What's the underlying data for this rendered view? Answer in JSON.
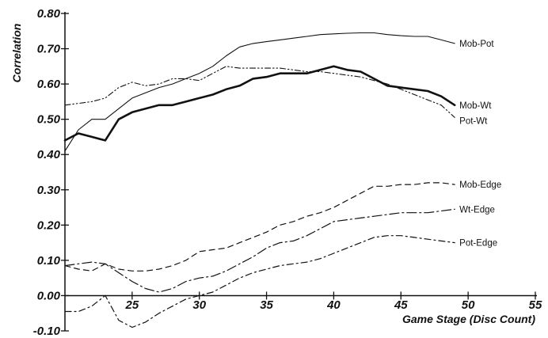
{
  "chart_data": {
    "type": "line",
    "title": "",
    "xlabel": "Game Stage (Disc Count)",
    "ylabel": "Correlation",
    "xlim": [
      20,
      55
    ],
    "ylim": [
      -0.1,
      0.8
    ],
    "xticks": [
      25,
      30,
      35,
      40,
      45,
      50,
      55
    ],
    "yticks": [
      -0.1,
      0.0,
      0.1,
      0.2,
      0.3,
      0.4,
      0.5,
      0.6,
      0.7,
      0.8
    ],
    "xtick_labels": [
      "25",
      "30",
      "35",
      "40",
      "45",
      "50",
      "55"
    ],
    "ytick_labels": [
      "-0.10",
      "0.00",
      "0.10",
      "0.20",
      "0.30",
      "0.40",
      "0.50",
      "0.60",
      "0.70",
      "0.80"
    ],
    "grid": false,
    "legend": "inline labels at right end of each series",
    "series": [
      {
        "name": "Mob-Pot",
        "style": "thin-solid",
        "x": [
          20,
          21,
          22,
          23,
          24,
          25,
          26,
          27,
          28,
          29,
          30,
          31,
          32,
          33,
          34,
          35,
          36,
          37,
          38,
          39,
          40,
          41,
          42,
          43,
          44,
          45,
          46,
          47,
          48,
          49
        ],
        "values": [
          0.41,
          0.47,
          0.5,
          0.5,
          0.53,
          0.56,
          0.575,
          0.59,
          0.6,
          0.615,
          0.63,
          0.65,
          0.68,
          0.705,
          0.715,
          0.72,
          0.725,
          0.73,
          0.735,
          0.74,
          0.742,
          0.744,
          0.745,
          0.745,
          0.74,
          0.737,
          0.735,
          0.735,
          0.725,
          0.715
        ]
      },
      {
        "name": "Mob-Wt",
        "style": "thick-solid",
        "x": [
          20,
          21,
          22,
          23,
          24,
          25,
          26,
          27,
          28,
          29,
          30,
          31,
          32,
          33,
          34,
          35,
          36,
          37,
          38,
          39,
          40,
          41,
          42,
          43,
          44,
          45,
          46,
          47,
          48,
          49
        ],
        "values": [
          0.44,
          0.46,
          0.45,
          0.44,
          0.5,
          0.52,
          0.53,
          0.54,
          0.54,
          0.55,
          0.56,
          0.57,
          0.585,
          0.595,
          0.615,
          0.62,
          0.63,
          0.63,
          0.63,
          0.64,
          0.65,
          0.64,
          0.635,
          0.615,
          0.595,
          0.59,
          0.585,
          0.58,
          0.565,
          0.54
        ]
      },
      {
        "name": "Pot-Wt",
        "style": "dash-dot-dot",
        "x": [
          20,
          21,
          22,
          23,
          24,
          25,
          26,
          27,
          28,
          29,
          30,
          31,
          32,
          33,
          34,
          35,
          36,
          37,
          38,
          39,
          40,
          41,
          42,
          43,
          44,
          45,
          46,
          47,
          48,
          49
        ],
        "values": [
          0.54,
          0.545,
          0.55,
          0.56,
          0.59,
          0.605,
          0.595,
          0.6,
          0.615,
          0.615,
          0.61,
          0.63,
          0.65,
          0.645,
          0.645,
          0.645,
          0.645,
          0.64,
          0.635,
          0.635,
          0.63,
          0.625,
          0.62,
          0.61,
          0.6,
          0.585,
          0.57,
          0.555,
          0.54,
          0.505
        ]
      },
      {
        "name": "Mob-Edge",
        "style": "dashed",
        "x": [
          20,
          21,
          22,
          23,
          24,
          25,
          26,
          27,
          28,
          29,
          30,
          31,
          32,
          33,
          34,
          35,
          36,
          37,
          38,
          39,
          40,
          41,
          42,
          43,
          44,
          45,
          46,
          47,
          48,
          49
        ],
        "values": [
          0.085,
          0.075,
          0.07,
          0.09,
          0.075,
          0.07,
          0.07,
          0.075,
          0.085,
          0.1,
          0.125,
          0.13,
          0.135,
          0.15,
          0.165,
          0.18,
          0.2,
          0.21,
          0.225,
          0.235,
          0.25,
          0.27,
          0.29,
          0.31,
          0.31,
          0.315,
          0.315,
          0.32,
          0.32,
          0.315
        ]
      },
      {
        "name": "Wt-Edge",
        "style": "long-dash-dot",
        "x": [
          20,
          21,
          22,
          23,
          24,
          25,
          26,
          27,
          28,
          29,
          30,
          31,
          32,
          33,
          34,
          35,
          36,
          37,
          38,
          39,
          40,
          41,
          42,
          43,
          44,
          45,
          46,
          47,
          48,
          49
        ],
        "values": [
          0.085,
          0.09,
          0.095,
          0.09,
          0.065,
          0.04,
          0.02,
          0.01,
          0.02,
          0.04,
          0.05,
          0.055,
          0.07,
          0.09,
          0.11,
          0.135,
          0.15,
          0.155,
          0.17,
          0.19,
          0.21,
          0.215,
          0.22,
          0.225,
          0.23,
          0.235,
          0.235,
          0.235,
          0.24,
          0.245
        ]
      },
      {
        "name": "Pot-Edge",
        "style": "dash-dot",
        "x": [
          20,
          21,
          22,
          23,
          24,
          25,
          26,
          27,
          28,
          29,
          30,
          31,
          32,
          33,
          34,
          35,
          36,
          37,
          38,
          39,
          40,
          41,
          42,
          43,
          44,
          45,
          46,
          47,
          48,
          49
        ],
        "values": [
          -0.045,
          -0.045,
          -0.03,
          0.0,
          -0.07,
          -0.09,
          -0.075,
          -0.05,
          -0.03,
          -0.01,
          0.0,
          0.01,
          0.03,
          0.05,
          0.065,
          0.075,
          0.085,
          0.09,
          0.095,
          0.105,
          0.12,
          0.135,
          0.15,
          0.165,
          0.17,
          0.17,
          0.165,
          0.16,
          0.155,
          0.15
        ]
      }
    ]
  }
}
